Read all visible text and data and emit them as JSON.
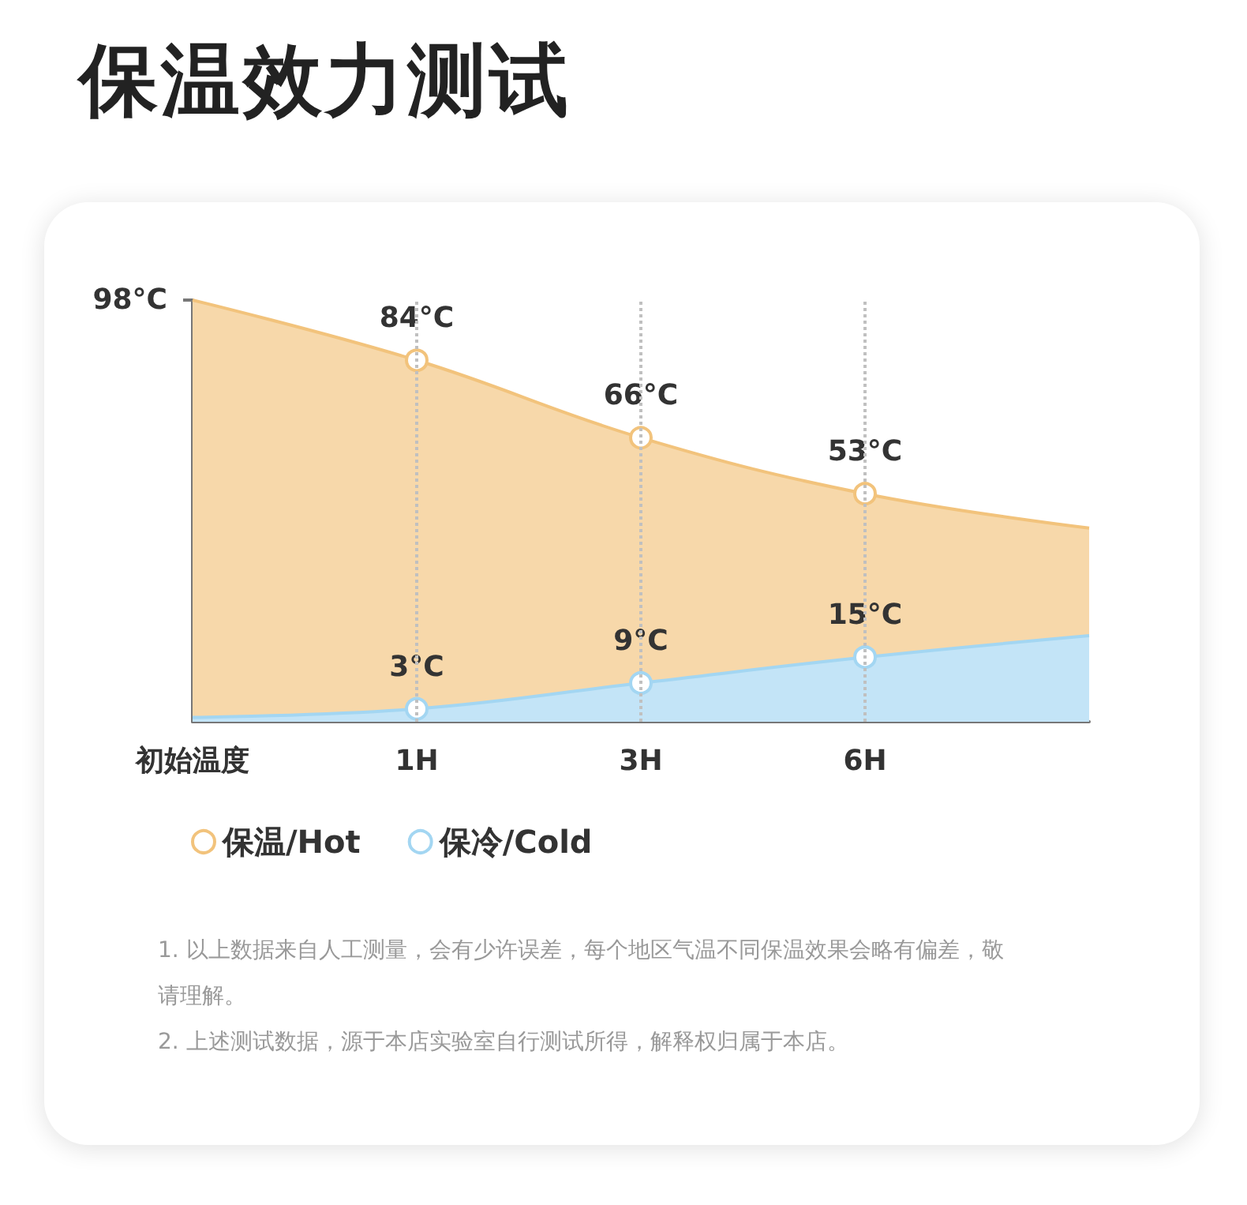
{
  "chart_data": {
    "type": "area",
    "title": "保温效力测试",
    "categories": [
      "初始温度",
      "1H",
      "3H",
      "6H",
      null
    ],
    "series": [
      {
        "name": "保温/Hot",
        "color": "#f2c37c",
        "values": [
          98,
          84,
          66,
          53,
          45
        ],
        "value_labels": [
          null,
          "84°C",
          "66°C",
          "53°C",
          null
        ]
      },
      {
        "name": "保冷/Cold",
        "color": "#a3d6f2",
        "values": [
          1,
          3,
          9,
          15,
          20
        ],
        "value_labels": [
          null,
          "3°C",
          "9°C",
          "15°C",
          null
        ]
      }
    ],
    "ylim": [
      0,
      98
    ],
    "yticks": [
      {
        "value": 98,
        "label": "98°C"
      }
    ],
    "marker": "circle",
    "grid": false,
    "legend": "bottom left",
    "ref_lines": [
      {
        "axis": "x",
        "value": "1H",
        "color": "#c0c0c0",
        "line_style": "dotted"
      },
      {
        "axis": "x",
        "value": "3H",
        "color": "#c0c0c0",
        "line_style": "dotted"
      },
      {
        "axis": "x",
        "value": "6H",
        "color": "#c0c0c0",
        "line_style": "dotted"
      }
    ],
    "annotations": [
      "1. 以上数据来自人工测量，会有少许误差，每个地区气温不同保温效果会略有偏差，敬请理解。",
      "2. 上述测试数据，源于本店实验室自行测试所得，解释权归属于本店。"
    ]
  }
}
